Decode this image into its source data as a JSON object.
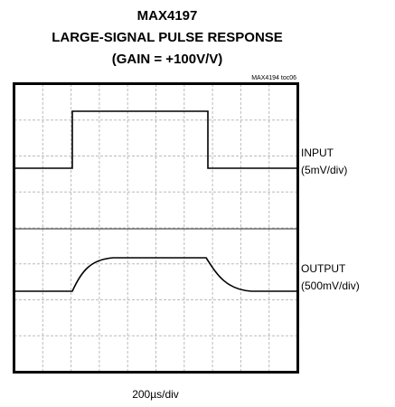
{
  "title_lines": [
    "MAX4197",
    "LARGE-SIGNAL PULSE RESPONSE",
    "(GAIN = +100V/V)"
  ],
  "figure_id": "MAX4194 toc06",
  "channels": [
    {
      "name": "INPUT",
      "scale": "(5mV/div)"
    },
    {
      "name": "OUTPUT",
      "scale": "(500mV/div)"
    }
  ],
  "timebase": "200µs/div"
}
